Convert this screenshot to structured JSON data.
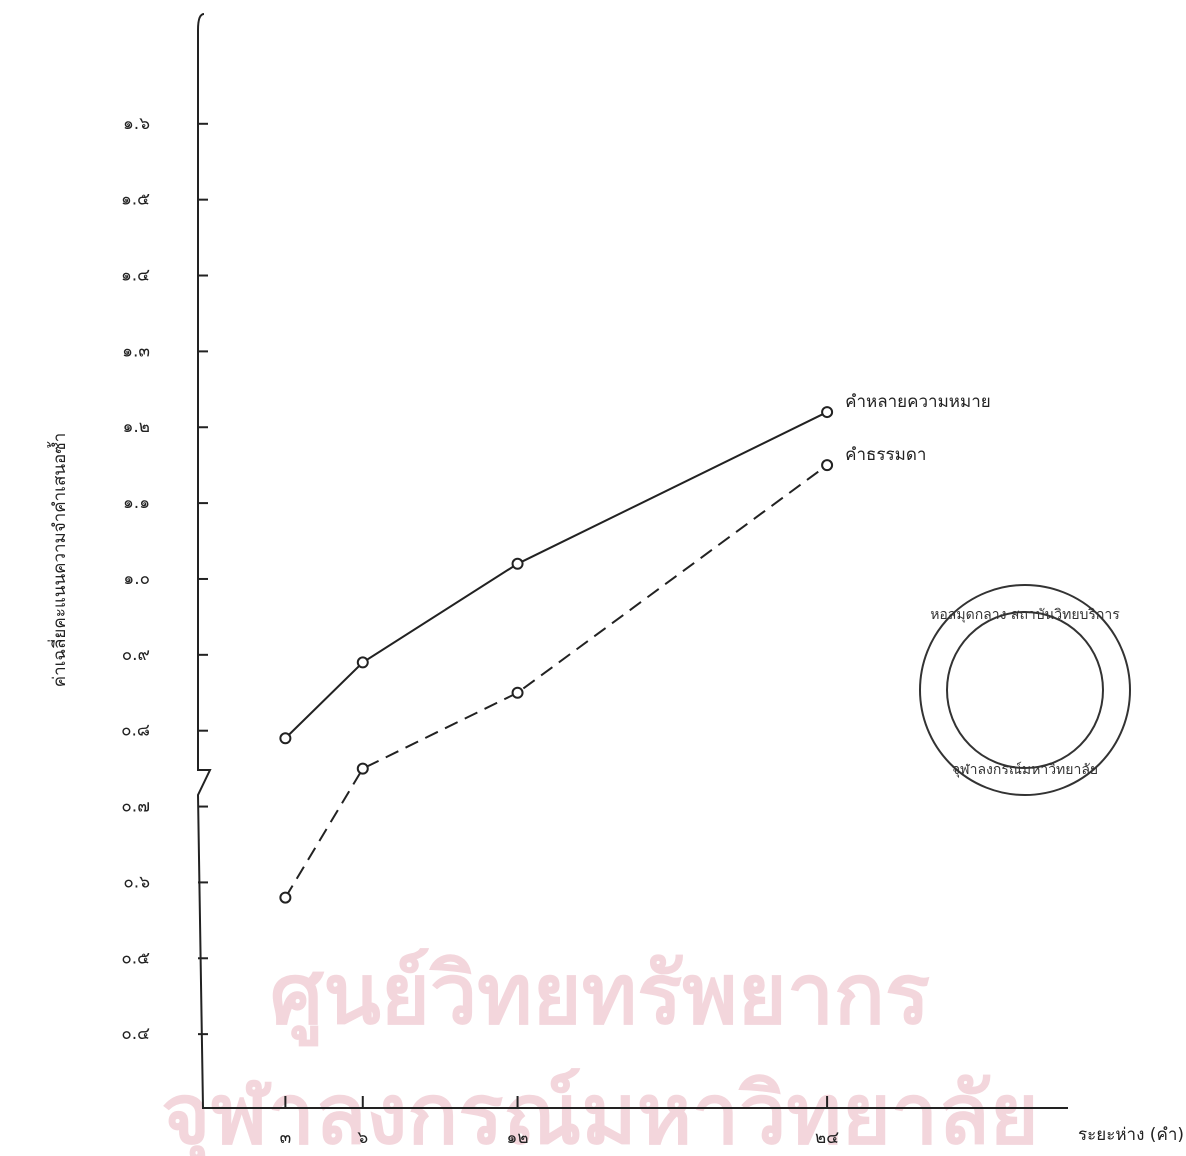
{
  "chart_data": {
    "type": "line",
    "ylabel": "ค่าเฉลี่ยคะแนนความจำคำเสนอซ้ำ",
    "xlabel": "ระยะห่าง (คำ)",
    "x": [
      3,
      6,
      12,
      24
    ],
    "xlim": [
      0,
      33.3
    ],
    "xticks": [
      {
        "value": 3,
        "label": "๓"
      },
      {
        "value": 6,
        "label": "๖"
      },
      {
        "value": 12,
        "label": "๑๒"
      },
      {
        "value": 24,
        "label": "๒๔"
      }
    ],
    "ylim": [
      0.3,
      1.75
    ],
    "yticks": [
      {
        "value": 0.4,
        "label": "๐.๔"
      },
      {
        "value": 0.5,
        "label": "๐.๕"
      },
      {
        "value": 0.6,
        "label": "๐.๖"
      },
      {
        "value": 0.7,
        "label": "๐.๗"
      },
      {
        "value": 0.8,
        "label": "๐.๘"
      },
      {
        "value": 0.9,
        "label": "๐.๙"
      },
      {
        "value": 1.0,
        "label": "๑.๐"
      },
      {
        "value": 1.1,
        "label": "๑.๑"
      },
      {
        "value": 1.2,
        "label": "๑.๒"
      },
      {
        "value": 1.3,
        "label": "๑.๓"
      },
      {
        "value": 1.4,
        "label": "๑.๔"
      },
      {
        "value": 1.5,
        "label": "๑.๕"
      },
      {
        "value": 1.6,
        "label": "๑.๖"
      }
    ],
    "series": [
      {
        "name": "คำหลายความหมาย",
        "color": "#222222",
        "line_style": "solid",
        "values": [
          0.79,
          0.89,
          1.02,
          1.22
        ]
      },
      {
        "name": "คำธรรมดา",
        "color": "#222222",
        "line_style": "dashed",
        "values": [
          0.58,
          0.75,
          0.85,
          1.15
        ]
      }
    ]
  },
  "watermark": [
    "ศูนย์วิทยทรัพยากร",
    "จุฬาลงกรณ์มหาวิทยาลัย"
  ],
  "stamp": [
    "หอสมุดกลาง สถาบันวิทยบริการ",
    "จุฬาลงกรณ์มหาวิทยาลัย"
  ]
}
